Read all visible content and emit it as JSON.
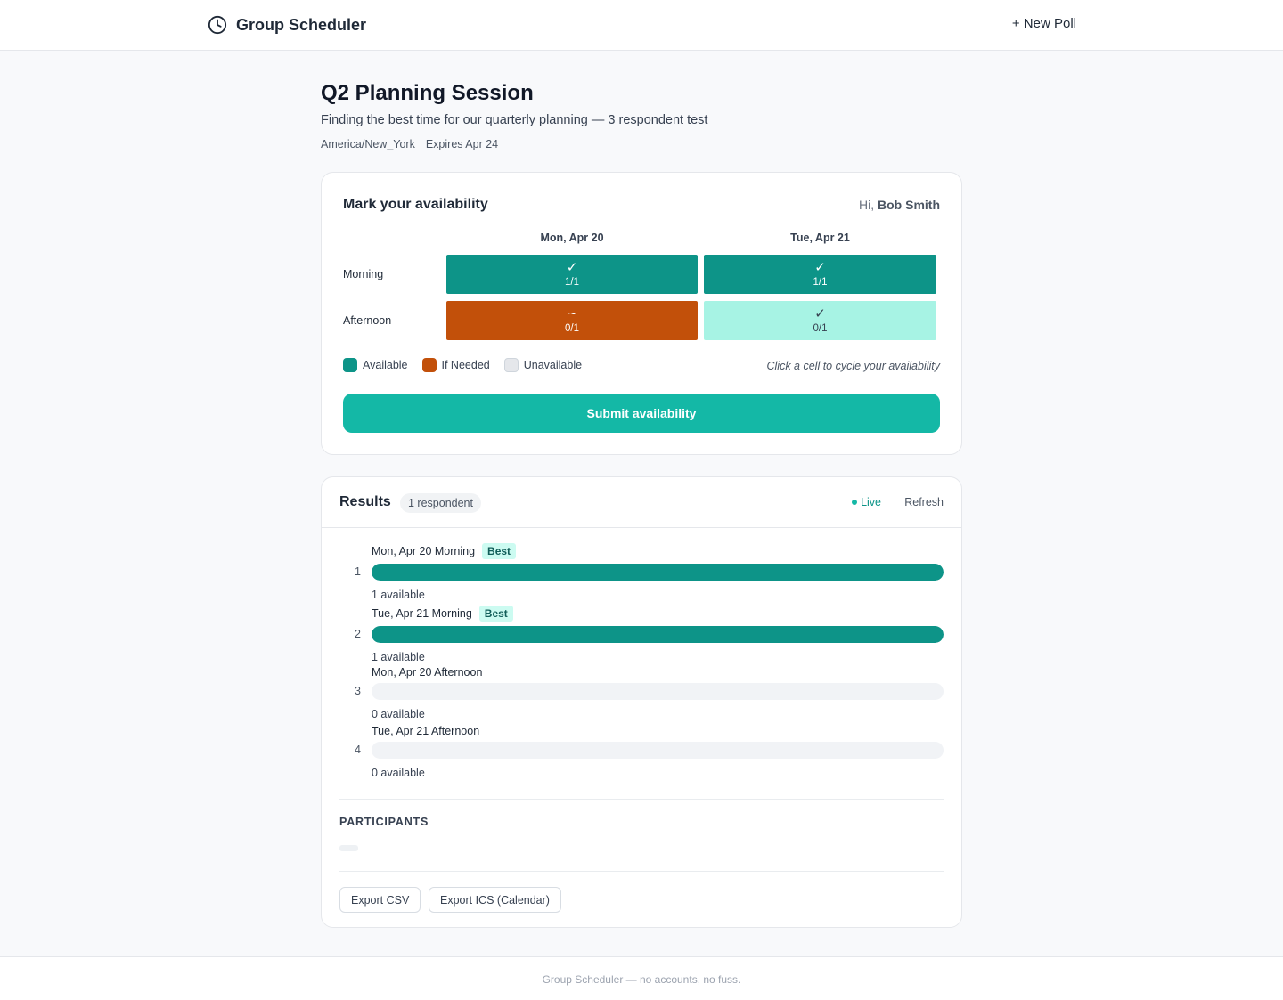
{
  "app": {
    "name": "Group Scheduler",
    "new_poll_label": "+ New Poll",
    "footer": "Group Scheduler — no accounts, no fuss."
  },
  "poll": {
    "title": "Q2 Planning Session",
    "description": "Finding the best time for our quarterly planning — 3 respondent test",
    "timezone": "America/New_York",
    "expires": "Expires Apr 24"
  },
  "availability": {
    "heading": "Mark your availability",
    "greeting_prefix": "Hi, ",
    "user_name": "Bob Smith",
    "days": [
      "Mon, Apr 20",
      "Tue, Apr 21"
    ],
    "slots": [
      "Morning",
      "Afternoon"
    ],
    "cells": [
      [
        {
          "state": "available",
          "mark": "✓",
          "count": "1/1"
        },
        {
          "state": "available",
          "mark": "✓",
          "count": "1/1"
        }
      ],
      [
        {
          "state": "ifneeded",
          "mark": "~",
          "count": "0/1"
        },
        {
          "state": "pending",
          "mark": "✓",
          "count": "0/1"
        }
      ]
    ],
    "legend": {
      "available": "Available",
      "if_needed": "If Needed",
      "unavailable": "Unavailable"
    },
    "hint": "Click a cell to cycle your availability",
    "submit_label": "Submit availability"
  },
  "results": {
    "heading": "Results",
    "respondent_count": "1 respondent",
    "live_label": "Live",
    "refresh_label": "Refresh",
    "best_label": "Best",
    "rankings": [
      {
        "rank": "1",
        "label": "Mon, Apr 20 Morning",
        "best": true,
        "fraction": 1.0,
        "count": "1 available"
      },
      {
        "rank": "2",
        "label": "Tue, Apr 21 Morning",
        "best": true,
        "fraction": 1.0,
        "count": "1 available"
      },
      {
        "rank": "3",
        "label": "Mon, Apr 20 Afternoon",
        "best": false,
        "fraction": 0.0,
        "count": "0 available"
      },
      {
        "rank": "4",
        "label": "Tue, Apr 21 Afternoon",
        "best": false,
        "fraction": 0.0,
        "count": "0 available"
      }
    ],
    "participants_label": "PARTICIPANTS",
    "export_csv_label": "Export CSV",
    "export_ics_label": "Export ICS (Calendar)"
  },
  "colors": {
    "available": "#0d9488",
    "if_needed": "#c2500a",
    "unavailable": "#e5e7eb",
    "accent": "#14b8a6"
  },
  "icons": {
    "brand": "clock-icon"
  }
}
